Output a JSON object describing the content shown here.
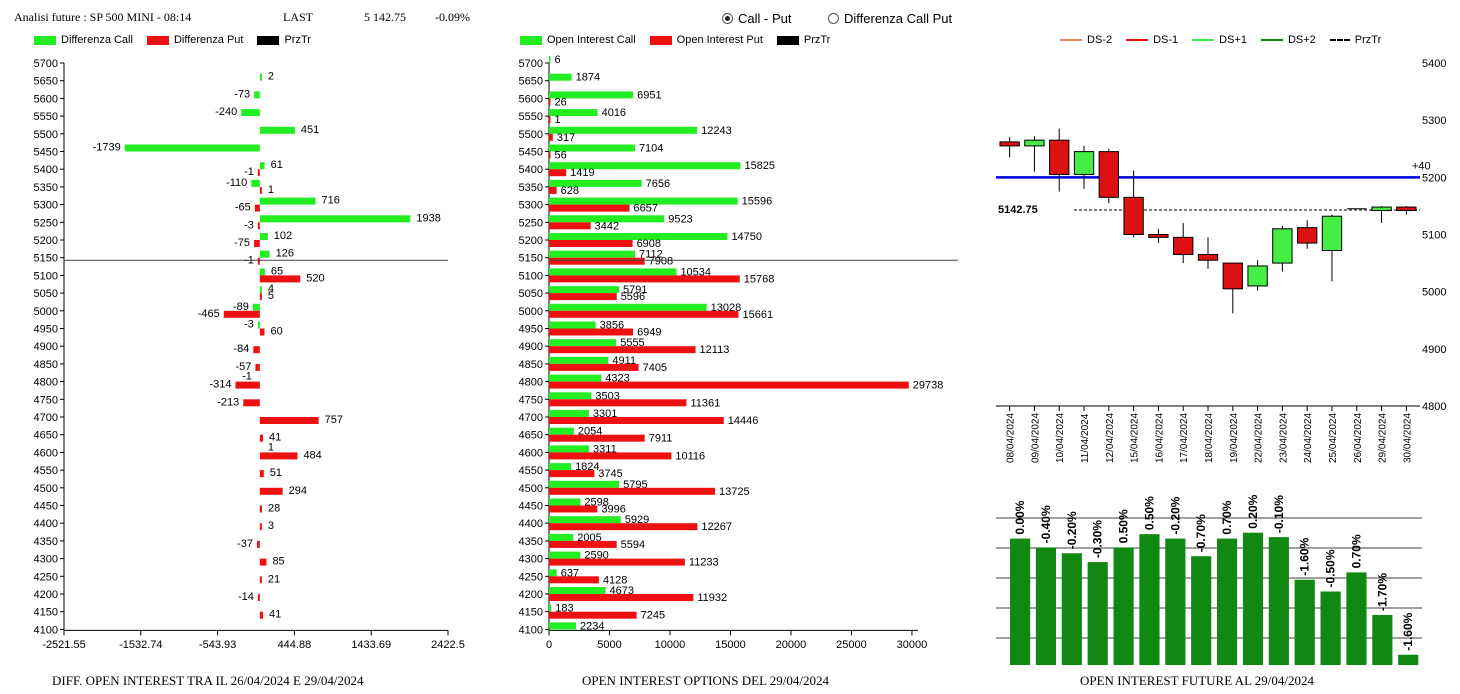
{
  "header": {
    "title": "Analisi future : SP 500 MINI - 08:14",
    "last_label": "LAST",
    "last_value": "5 142.75",
    "change": "-0.09%"
  },
  "radio": [
    {
      "label": "Call - Put",
      "selected": true
    },
    {
      "label": "Differenza Call Put",
      "selected": false
    }
  ],
  "colors": {
    "call": "#22ee22",
    "put": "#ee1111",
    "przt": "#000000",
    "ds_minus2": "#f08060",
    "ds_minus1": "#dd1111",
    "ds_plus1": "#44ee44",
    "ds_plus2": "#118811",
    "level_line": "#0000dd",
    "oi_bar": "#118811"
  },
  "left_chart": {
    "legend": [
      "Differenza Call",
      "Differenza Put",
      "PrzTr"
    ],
    "caption": "DIFF. OPEN INTEREST TRA IL 26/04/2024 E 29/04/2024"
  },
  "middle_chart": {
    "legend": [
      "Open Interest Call",
      "Open Interest Put",
      "PrzTr"
    ],
    "caption": "OPEN INTEREST OPTIONS DEL 29/04/2024"
  },
  "right_chart": {
    "legend": [
      "DS-2",
      "DS-1",
      "DS+1",
      "DS+2",
      "PrzTr"
    ],
    "caption": "OPEN INTEREST FUTURE AL 29/04/2024"
  },
  "chart_data": [
    {
      "type": "bar",
      "orientation": "horizontal",
      "categories": [
        5700,
        5650,
        5600,
        5550,
        5500,
        5450,
        5400,
        5350,
        5300,
        5250,
        5200,
        5150,
        5100,
        5050,
        5000,
        4950,
        4900,
        4850,
        4800,
        4750,
        4700,
        4650,
        4600,
        4550,
        4500,
        4450,
        4400,
        4350,
        4300,
        4250,
        4200,
        4150,
        4100
      ],
      "series": [
        {
          "name": "Differenza Call",
          "values": [
            null,
            2,
            -73,
            -240,
            451,
            -1739,
            61,
            -110,
            716,
            1938,
            102,
            126,
            65,
            4,
            -89,
            -3,
            null,
            null,
            null,
            null,
            null,
            null,
            null,
            null,
            null,
            null,
            null,
            null,
            null,
            null,
            null,
            null,
            null
          ]
        },
        {
          "name": "Differenza Put",
          "values": [
            null,
            null,
            null,
            null,
            null,
            null,
            -1,
            1,
            -65,
            -3,
            -75,
            -1,
            520,
            5,
            -465,
            60,
            -84,
            -57,
            -314,
            -213,
            757,
            41,
            484,
            51,
            294,
            28,
            3,
            -37,
            85,
            21,
            -14,
            41,
            null
          ]
        }
      ],
      "extra_label": {
        "category": 4600,
        "value": 1
      },
      "extra_label_2": {
        "category": 4800,
        "value": -1
      },
      "xticks": [
        -2521.55,
        -1532.74,
        -543.93,
        444.88,
        1433.69,
        2422.5
      ],
      "xlim": [
        -2521.55,
        2422.5
      ],
      "price_level": 5142.75
    },
    {
      "type": "bar",
      "orientation": "horizontal",
      "categories": [
        5700,
        5650,
        5600,
        5550,
        5500,
        5450,
        5400,
        5350,
        5300,
        5250,
        5200,
        5150,
        5100,
        5050,
        5000,
        4950,
        4900,
        4850,
        4800,
        4750,
        4700,
        4650,
        4600,
        4550,
        4500,
        4450,
        4400,
        4350,
        4300,
        4250,
        4200,
        4150,
        4100
      ],
      "series": [
        {
          "name": "Open Interest Call",
          "values": [
            6,
            1874,
            6951,
            4016,
            12243,
            7104,
            15825,
            7656,
            15596,
            9523,
            14750,
            7112,
            10534,
            5791,
            13028,
            3856,
            5555,
            4911,
            4323,
            3503,
            3301,
            2054,
            3311,
            1824,
            5795,
            2598,
            5929,
            2005,
            2590,
            637,
            4673,
            183,
            2234
          ]
        },
        {
          "name": "Open Interest Put",
          "values": [
            null,
            null,
            26,
            1,
            317,
            56,
            1419,
            628,
            6657,
            3442,
            6908,
            7908,
            15768,
            5596,
            15661,
            6949,
            12113,
            7405,
            29738,
            11361,
            14446,
            7911,
            10116,
            3745,
            13725,
            3996,
            12267,
            5594,
            11233,
            4128,
            11932,
            7245,
            null
          ]
        }
      ],
      "xticks": [
        0,
        5000,
        10000,
        15000,
        20000,
        25000,
        30000
      ],
      "xlim": [
        0,
        30500
      ],
      "price_level": 5142.75
    },
    {
      "type": "candlestick",
      "dates": [
        "08/04/2024",
        "09/04/2024",
        "10/04/2024",
        "11/04/2024",
        "12/04/2024",
        "15/04/2024",
        "16/04/2024",
        "17/04/2024",
        "18/04/2024",
        "19/04/2024",
        "22/04/2024",
        "23/04/2024",
        "24/04/2024",
        "25/04/2024",
        "26/04/2024",
        "29/04/2024",
        "30/04/2024"
      ],
      "candles": [
        {
          "open": 5262,
          "high": 5270,
          "low": 5235,
          "close": 5255
        },
        {
          "open": 5255,
          "high": 5272,
          "low": 5210,
          "close": 5265
        },
        {
          "open": 5265,
          "high": 5285,
          "low": 5175,
          "close": 5205
        },
        {
          "open": 5205,
          "high": 5255,
          "low": 5180,
          "close": 5245
        },
        {
          "open": 5245,
          "high": 5250,
          "low": 5155,
          "close": 5165
        },
        {
          "open": 5165,
          "high": 5212,
          "low": 5095,
          "close": 5100
        },
        {
          "open": 5100,
          "high": 5110,
          "low": 5085,
          "close": 5095
        },
        {
          "open": 5095,
          "high": 5120,
          "low": 5050,
          "close": 5065
        },
        {
          "open": 5065,
          "high": 5095,
          "low": 5040,
          "close": 5055
        },
        {
          "open": 5050,
          "high": 5050,
          "low": 4962,
          "close": 5005
        },
        {
          "open": 5010,
          "high": 5055,
          "low": 5002,
          "close": 5045
        },
        {
          "open": 5050,
          "high": 5115,
          "low": 5035,
          "close": 5110
        },
        {
          "open": 5112,
          "high": 5125,
          "low": 5075,
          "close": 5085
        },
        {
          "open": 5072,
          "high": 5135,
          "low": 5018,
          "close": 5132
        },
        {
          "open": 5145,
          "high": 5145,
          "low": 5145,
          "close": 5145
        },
        {
          "open": 5142,
          "high": 5150,
          "low": 5120,
          "close": 5148
        },
        {
          "open": 5148,
          "high": 5150,
          "low": 5135,
          "close": 5142
        }
      ],
      "yticks": [
        4800,
        4900,
        5000,
        5100,
        5200,
        5300,
        5400
      ],
      "ylim": [
        4800,
        5400
      ],
      "level_line": {
        "value": 5200,
        "label": "+40"
      },
      "price_label": "5142.75",
      "price_value": 5142.75
    },
    {
      "type": "bar",
      "labels": [
        "0.00%",
        "-0.40%",
        "-0.20%",
        "-0.30%",
        "0.50%",
        "0.50%",
        "-0.20%",
        "-0.70%",
        "0.70%",
        "0.20%",
        "-0.10%",
        "-1.60%",
        "-0.50%",
        "0.70%",
        "-1.70%",
        "-1.60%"
      ],
      "values": [
        0.86,
        0.8,
        0.76,
        0.7,
        0.8,
        0.89,
        0.86,
        0.74,
        0.86,
        0.9,
        0.87,
        0.58,
        0.5,
        0.63,
        0.34,
        0.07
      ],
      "grid": true
    }
  ]
}
